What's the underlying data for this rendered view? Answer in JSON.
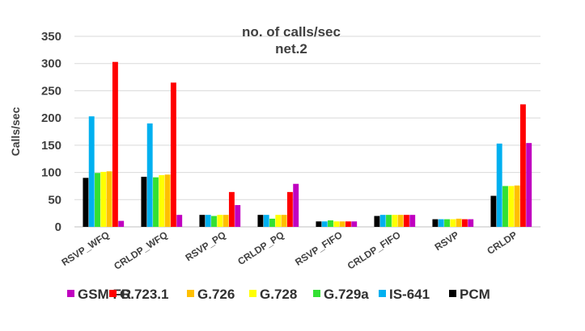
{
  "chart_data": {
    "type": "bar",
    "title": [
      "no. of calls/sec",
      "net.2"
    ],
    "xlabel": "",
    "ylabel": "Calls/sec",
    "ylim": [
      0,
      350
    ],
    "yticks": [
      0,
      50,
      100,
      150,
      200,
      250,
      300,
      350
    ],
    "grid": true,
    "legend_position": "bottom",
    "categories": [
      "RSVP_WFQ",
      "CRLDP_WFQ",
      "RSVP_PQ",
      "CRLDP_PQ",
      "RSVP_FIFO",
      "CRLDP_FIFO",
      "RSVP",
      "CRLDP"
    ],
    "series": [
      {
        "name": "PCM",
        "color": "#000000",
        "values": [
          90,
          92,
          22,
          22,
          10,
          20,
          14,
          57
        ]
      },
      {
        "name": "IS-641",
        "color": "#00b0f0",
        "values": [
          203,
          190,
          22,
          22,
          10,
          22,
          14,
          153
        ]
      },
      {
        "name": "G.729a",
        "color": "#33e033",
        "values": [
          99,
          91,
          20,
          15,
          12,
          22,
          14,
          75
        ]
      },
      {
        "name": "G.728",
        "color": "#ffff00",
        "values": [
          101,
          95,
          22,
          22,
          10,
          22,
          14,
          75
        ]
      },
      {
        "name": "G.726",
        "color": "#ffc000",
        "values": [
          102,
          96,
          22,
          22,
          10,
          22,
          15,
          76
        ]
      },
      {
        "name": "G.723.1",
        "color": "#ff0000",
        "values": [
          303,
          265,
          64,
          64,
          10,
          22,
          14,
          225
        ]
      },
      {
        "name": "GSM FR",
        "color": "#c000c0",
        "values": [
          11,
          22,
          40,
          79,
          10,
          22,
          14,
          154
        ]
      }
    ],
    "legend_order": [
      "GSM FR",
      "G.723.1",
      "G.726",
      "G.728",
      "G.729a",
      "IS-641",
      "PCM"
    ]
  }
}
